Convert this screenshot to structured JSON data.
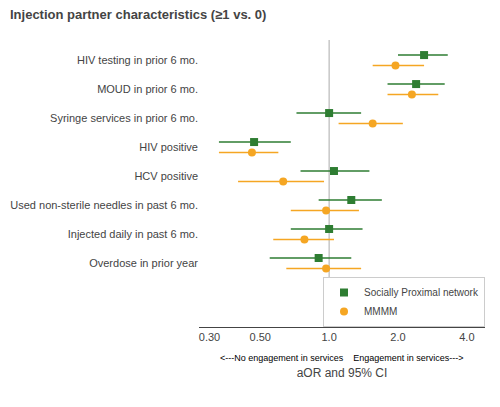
{
  "chart_data": {
    "type": "forest",
    "title": "Injection partner characteristics (≥1 vs. 0)",
    "xlabel": "aOR and 95% CI",
    "annotations": [
      "<---No engagement in services    Engagement in services--->"
    ],
    "categories": [
      "HIV testing in prior 6 mo.",
      "MOUD in prior 6 mo.",
      "Syringe services in prior 6 mo.",
      "HIV positive",
      "HCV positive",
      "Used non-sterile needles in past 6 mo.",
      "Injected daily in past 6 mo.",
      "Overdose in prior year"
    ],
    "series": [
      {
        "name": "Socially Proximal network",
        "color": "#2e7d32",
        "marker": "square",
        "values": [
          2.6,
          2.4,
          1.0,
          0.47,
          1.05,
          1.25,
          1.0,
          0.9
        ],
        "ci_low": [
          2.0,
          1.8,
          0.72,
          0.33,
          0.75,
          0.9,
          0.68,
          0.55
        ],
        "ci_high": [
          3.3,
          3.2,
          1.38,
          0.68,
          1.5,
          1.7,
          1.4,
          1.25
        ]
      },
      {
        "name": "MMMM",
        "color": "#f5a623",
        "marker": "circle",
        "values": [
          1.95,
          2.3,
          1.55,
          0.46,
          0.63,
          0.97,
          0.78,
          0.97
        ],
        "ci_low": [
          1.55,
          1.8,
          1.1,
          0.33,
          0.4,
          0.68,
          0.57,
          0.65
        ],
        "ci_high": [
          2.6,
          3.0,
          2.1,
          0.6,
          0.95,
          1.35,
          1.05,
          1.38
        ]
      }
    ],
    "ref_line": 1.0,
    "xlim": [
      0.27,
      4.8
    ],
    "xticks": [
      {
        "value": 0.3,
        "label": "0.30"
      },
      {
        "value": 0.5,
        "label": "0.50"
      },
      {
        "value": 1.0,
        "label": "1.0"
      },
      {
        "value": 2.0,
        "label": "2.0"
      },
      {
        "value": 4.0,
        "label": "4.0"
      }
    ],
    "log": "x",
    "grid": false,
    "legend": "lower right"
  }
}
